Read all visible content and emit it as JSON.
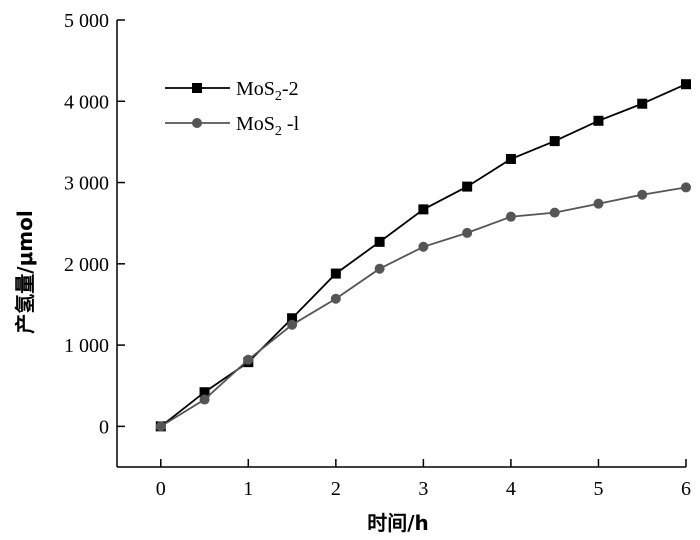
{
  "chart_data": {
    "type": "line",
    "title": "",
    "xlabel": "时间/h",
    "ylabel": "产氢量/μmol",
    "xlim": [
      -0.5,
      6
    ],
    "ylim": [
      -500,
      5000
    ],
    "x_ticks": [
      0,
      1,
      2,
      3,
      4,
      5,
      6
    ],
    "x_tick_labels": [
      "0",
      "1",
      "2",
      "3",
      "4",
      "5",
      "6"
    ],
    "y_ticks": [
      0,
      1000,
      2000,
      3000,
      4000,
      5000
    ],
    "y_tick_labels": [
      "0",
      "1 000",
      "2 000",
      "3 000",
      "4 000",
      "5 000"
    ],
    "grid": false,
    "legend_position": "top-left",
    "series": [
      {
        "name": "MoS₂-2",
        "legend_base": "MoS",
        "legend_sub": "2",
        "legend_suffix": "-2",
        "marker": "square",
        "color": "#000000",
        "x": [
          0,
          0.5,
          1,
          1.5,
          2,
          2.5,
          3,
          3.5,
          4,
          4.5,
          5,
          5.5,
          6
        ],
        "y": [
          0,
          420,
          790,
          1330,
          1880,
          2270,
          2670,
          2950,
          3290,
          3510,
          3760,
          3970,
          4210
        ]
      },
      {
        "name": "MoS₂ -l",
        "legend_base": "MoS",
        "legend_sub": "2",
        "legend_suffix": " -l",
        "marker": "circle",
        "color": "#555555",
        "x": [
          0,
          0.5,
          1,
          1.5,
          2,
          2.5,
          3,
          3.5,
          4,
          4.5,
          5,
          5.5,
          6
        ],
        "y": [
          0,
          330,
          820,
          1250,
          1570,
          1940,
          2210,
          2380,
          2580,
          2630,
          2740,
          2850,
          2940
        ]
      }
    ]
  }
}
